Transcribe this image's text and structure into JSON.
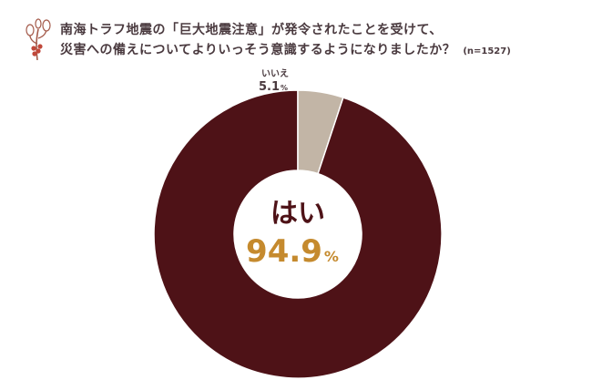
{
  "question": {
    "line1": "南海トラフ地震の「巨大地震注意」が発令されたことを受けて、",
    "line2": "災害への備えについてよりいっそう意識するようになりましたか？",
    "sample": "(n=1527)"
  },
  "colors": {
    "yes": "#4e1217",
    "no": "#c2b5a6",
    "highlight": "#c58a2e",
    "text": "#4a3a3f"
  },
  "icon": "nandina-branch-icon",
  "chart_data": {
    "type": "pie",
    "donut": true,
    "sample_size": "(n=1527)",
    "slices": [
      {
        "label": "はい",
        "value": 94.9,
        "display": "94.9",
        "unit": "%"
      },
      {
        "label": "いいえ",
        "value": 5.1,
        "display": "5.1",
        "unit": "%"
      }
    ]
  }
}
